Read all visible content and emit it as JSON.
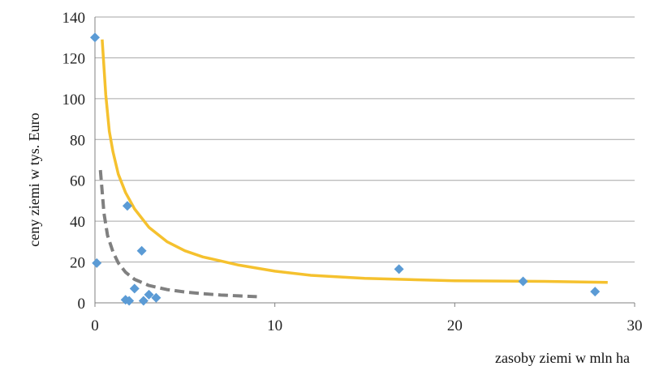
{
  "chart_data": {
    "type": "scatter",
    "xlabel": "zasoby  ziemi w mln ha",
    "ylabel": "ceny  ziemi w tys. Euro",
    "xlim": [
      0,
      30
    ],
    "ylim": [
      0,
      140
    ],
    "x_ticks": [
      0,
      10,
      20,
      30
    ],
    "y_ticks": [
      0,
      20,
      40,
      60,
      80,
      100,
      120,
      140
    ],
    "grid": "horizontal",
    "legend": "none",
    "series": [
      {
        "kind": "points",
        "marker": "diamond",
        "color": "#5b9bd5",
        "x": [
          0.0,
          0.1,
          1.8,
          1.7,
          1.9,
          2.2,
          2.6,
          2.7,
          3.0,
          3.4,
          16.9,
          23.8,
          27.8
        ],
        "y": [
          130,
          19.5,
          47.5,
          1.5,
          1.0,
          7.0,
          25.5,
          1.0,
          4.0,
          2.5,
          16.5,
          10.5,
          5.5
        ]
      },
      {
        "kind": "trendline",
        "style": "solid",
        "color": "#f5c12e",
        "x": [
          0.4,
          0.6,
          0.8,
          1.0,
          1.3,
          1.7,
          2.2,
          3.0,
          4.0,
          5.0,
          6.0,
          7.0,
          8.0,
          10.0,
          12.0,
          15.0,
          20.0,
          25.0,
          28.5
        ],
        "y": [
          129,
          102,
          84,
          74,
          63,
          54,
          46,
          37,
          30,
          25.5,
          22.5,
          20.5,
          18.5,
          15.5,
          13.5,
          12.0,
          10.8,
          10.5,
          10.0
        ]
      },
      {
        "kind": "trendline",
        "style": "dashed",
        "color": "#808080",
        "x": [
          0.3,
          0.5,
          0.7,
          1.0,
          1.3,
          1.7,
          2.2,
          3.0,
          4.0,
          5.0,
          6.0,
          7.0,
          8.0,
          9.0
        ],
        "y": [
          65,
          44,
          33,
          25,
          19.5,
          15,
          11.5,
          8.5,
          6.5,
          5.3,
          4.5,
          3.8,
          3.4,
          3.0
        ]
      }
    ]
  }
}
